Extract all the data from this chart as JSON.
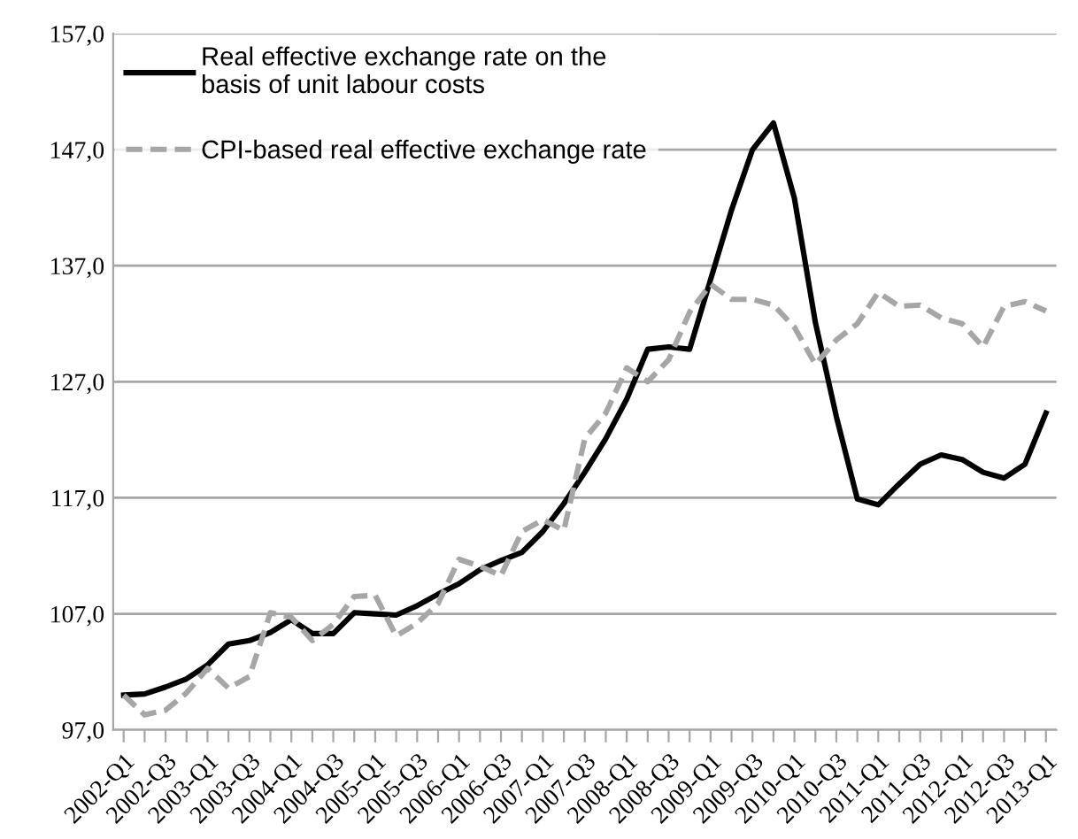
{
  "chart_data": {
    "type": "line",
    "categories": [
      "2002-Q1",
      null,
      "2002-Q3",
      null,
      "2003-Q1",
      null,
      "2003-Q3",
      null,
      "2004-Q1",
      null,
      "2004-Q3",
      null,
      "2005-Q1",
      null,
      "2005-Q3",
      null,
      "2006-Q1",
      null,
      "2006-Q3",
      null,
      "2007-Q1",
      null,
      "2007-Q3",
      null,
      "2008-Q1",
      null,
      "2008-Q3",
      null,
      "2009-Q1",
      null,
      "2009-Q3",
      null,
      "2010-Q1",
      null,
      "2010-Q3",
      null,
      "2011-Q1",
      null,
      "2011-Q3",
      null,
      "2012-Q1",
      null,
      "2012-Q3",
      null,
      "2013-Q1"
    ],
    "series": [
      {
        "name": "Real effective exchange rate on the\nbasis of unit labour costs",
        "color": "#000000",
        "line_style": "solid",
        "values": [
          100.0,
          100.1,
          100.7,
          101.4,
          102.6,
          104.4,
          104.7,
          105.4,
          106.5,
          105.3,
          105.3,
          107.1,
          107.0,
          106.9,
          107.7,
          108.7,
          109.6,
          110.8,
          111.6,
          112.3,
          114.1,
          116.5,
          119.2,
          122.1,
          125.5,
          129.8,
          130.0,
          129.8,
          135.8,
          141.8,
          147.0,
          149.3,
          142.8,
          132.1,
          124.0,
          116.9,
          116.4,
          118.2,
          119.9,
          120.7,
          120.3,
          119.2,
          118.7,
          119.9,
          124.3
        ]
      },
      {
        "name": "CPI-based real effective exchange rate",
        "color": "#a6a6a6",
        "line_style": "dashed",
        "values": [
          100.0,
          98.3,
          98.7,
          100.2,
          102.3,
          100.6,
          101.6,
          107.1,
          106.7,
          104.7,
          106.1,
          108.5,
          108.6,
          105.1,
          106.2,
          107.9,
          111.7,
          111.1,
          110.3,
          114.1,
          115.1,
          114.2,
          122.1,
          124.3,
          128.2,
          127.0,
          128.9,
          133.0,
          135.4,
          134.1,
          134.1,
          133.6,
          131.7,
          128.5,
          130.6,
          132.0,
          134.7,
          133.5,
          133.6,
          132.5,
          132.0,
          130.0,
          133.5,
          133.9,
          133.1
        ]
      }
    ],
    "ylim": [
      97,
      157
    ],
    "yticks": [
      {
        "value": 97,
        "label": "97,0"
      },
      {
        "value": 107,
        "label": "107,0"
      },
      {
        "value": 117,
        "label": "117,0"
      },
      {
        "value": 127,
        "label": "127,0"
      },
      {
        "value": 137,
        "label": "137,0"
      },
      {
        "value": 147,
        "label": "147,0"
      },
      {
        "value": 157,
        "label": "157,0"
      }
    ],
    "grid": "y",
    "legend": "top left",
    "marker": "none"
  }
}
